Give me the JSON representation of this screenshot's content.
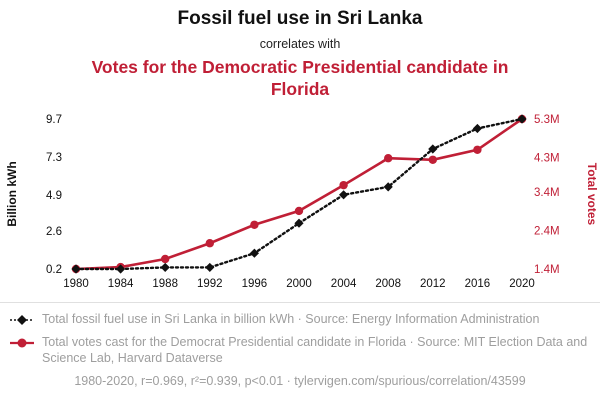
{
  "header": {
    "title": "Fossil fuel use in Sri Lanka",
    "subtitle": "correlates with",
    "title2": "Votes for the Democratic Presidential candidate in Florida"
  },
  "colors": {
    "accent_red": "#c01f36",
    "series_black": "#111111",
    "muted_text": "#9e9e9e",
    "divider": "#e0e0e0"
  },
  "chart_data": {
    "type": "line",
    "title": "Fossil fuel use in Sri Lanka correlates with Votes for the Democratic Presidential candidate in Florida",
    "x": [
      "1980",
      "1984",
      "1988",
      "1992",
      "1996",
      "2000",
      "2004",
      "2008",
      "2012",
      "2016",
      "2020"
    ],
    "left_axis": {
      "label": "Billion kWh",
      "tick_labels": [
        "0.2",
        "2.6",
        "4.9",
        "7.3",
        "9.7"
      ],
      "tick_values": [
        0.2,
        2.6,
        4.9,
        7.3,
        9.7
      ],
      "min": 0.2,
      "max": 9.7
    },
    "right_axis": {
      "label": "Total votes",
      "tick_labels": [
        "1.4M",
        "2.4M",
        "3.4M",
        "4.3M",
        "5.3M"
      ],
      "tick_values": [
        1.4,
        2.4,
        3.4,
        4.3,
        5.3
      ],
      "min": 1.4,
      "max": 5.3
    },
    "series": [
      {
        "name": "Total fossil fuel use in Sri Lanka in billion kWh",
        "axis": "left",
        "line": "dotted",
        "marker": "diamond",
        "color": "#111111",
        "values": [
          0.2,
          0.2,
          0.3,
          0.3,
          1.2,
          3.1,
          4.9,
          5.4,
          7.8,
          9.1,
          9.7
        ]
      },
      {
        "name": "Total votes cast for the Democrat Presidential candidate in Florida (millions)",
        "axis": "right",
        "line": "solid",
        "marker": "circle",
        "color": "#c01f36",
        "values": [
          1.4,
          1.45,
          1.66,
          2.07,
          2.55,
          2.91,
          3.58,
          4.28,
          4.24,
          4.5,
          5.3
        ]
      }
    ],
    "grid": false,
    "legend_position": "bottom"
  },
  "legend": [
    {
      "marker": "diamond",
      "text": "Total fossil fuel use in Sri Lanka in billion kWh · Source: Energy Information Administration"
    },
    {
      "marker": "circle",
      "text": "Total votes cast for the Democrat Presidential candidate in Florida · Source: MIT Election Data and Science Lab, Harvard Dataverse"
    }
  ],
  "footer": {
    "text": "1980-2020, r=0.969, r²=0.939, p<0.01 · tylervigen.com/spurious/correlation/43599"
  }
}
